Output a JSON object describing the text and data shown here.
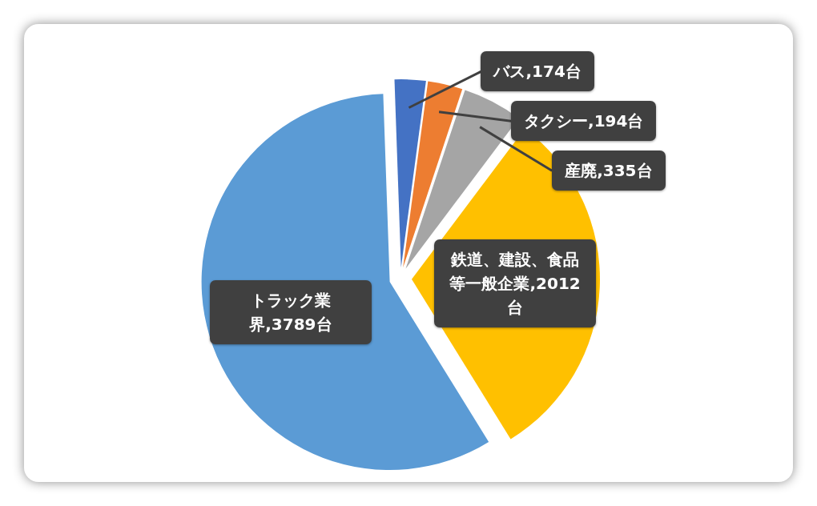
{
  "chart_data": {
    "type": "pie",
    "categories": [
      "バス",
      "タクシー",
      "産廃",
      "鉄道、建設、食品等一般企業",
      "トラック業界"
    ],
    "values": [
      174,
      194,
      335,
      2012,
      3789
    ],
    "value_labels": [
      "174台",
      "194台",
      "335台",
      "2012台",
      "3789台"
    ],
    "colors": [
      "#4472c4",
      "#ed7d31",
      "#a5a5a5",
      "#ffc000",
      "#5b9bd5"
    ],
    "legend": false
  }
}
